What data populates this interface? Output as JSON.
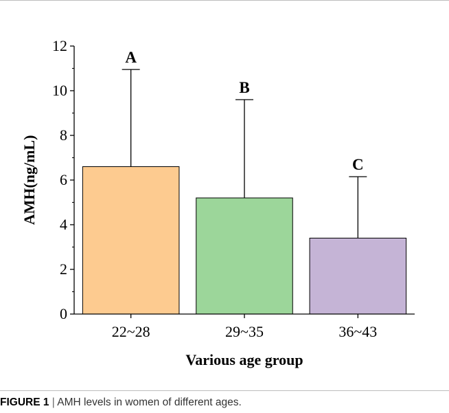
{
  "chart_data": {
    "type": "bar",
    "categories": [
      "22~28",
      "29~35",
      "36~43"
    ],
    "values": [
      6.6,
      5.2,
      3.4
    ],
    "error_upper": [
      10.95,
      9.6,
      6.15
    ],
    "significance_labels": [
      "A",
      "B",
      "C"
    ],
    "colors": [
      "#fdcb90",
      "#9cd69a",
      "#c5b4d6"
    ],
    "xlabel": "Various age group",
    "ylabel": "AMH(ng/mL)",
    "ylim": [
      0,
      12
    ],
    "yticks": [
      "0",
      "2",
      "4",
      "6",
      "8",
      "10",
      "12"
    ],
    "grid": false
  },
  "caption": {
    "figure_label": "FIGURE 1",
    "separator": "|",
    "text": "AMH levels in women of different ages."
  }
}
